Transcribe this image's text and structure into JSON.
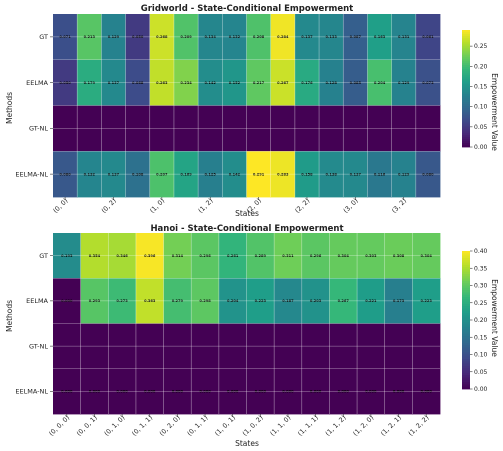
{
  "colors": {
    "viridis": [
      "#440154",
      "#482878",
      "#3e4989",
      "#31688e",
      "#26828e",
      "#1f9e89",
      "#35b779",
      "#6ece58",
      "#b5de2b",
      "#fde725"
    ],
    "grid_line": "#ffffff"
  },
  "chart_data": [
    {
      "type": "heatmap",
      "title": "Gridworld - State-Conditional Empowerment",
      "xlabel": "States",
      "ylabel": "Methods",
      "rows": [
        "GT",
        "EELMA",
        "GT-NL",
        "EELMA-NL"
      ],
      "x_tick_labels": [
        "(0, 0)",
        "(0, 2)",
        "(1, 0)",
        "(1, 2)",
        "(2, 0)",
        "(2, 2)",
        "(3, 0)",
        "(3, 2)"
      ],
      "x_tick_positions": [
        0,
        2,
        4,
        6,
        8,
        10,
        12,
        14
      ],
      "n_columns": 16,
      "values": [
        [
          0.071,
          0.213,
          0.129,
          0.05,
          0.268,
          0.209,
          0.134,
          0.132,
          0.208,
          0.284,
          0.137,
          0.133,
          0.087,
          0.163,
          0.131,
          0.061
        ],
        [
          0.05,
          0.179,
          0.137,
          0.068,
          0.263,
          0.234,
          0.142,
          0.152,
          0.217,
          0.267,
          0.176,
          0.128,
          0.085,
          0.204,
          0.129,
          0.073
        ],
        [
          0,
          0,
          0,
          0,
          0,
          0,
          0,
          0,
          0,
          0,
          0,
          0,
          0,
          0,
          0,
          0
        ],
        [
          0.08,
          0.132,
          0.137,
          0.108,
          0.207,
          0.169,
          0.125,
          0.142,
          0.291,
          0.283,
          0.158,
          0.138,
          0.137,
          0.116,
          0.129,
          0.08
        ]
      ],
      "cell_labels": [
        [
          "0.071",
          "0.213",
          "0.129",
          "0.050",
          "0.268",
          "0.209",
          "0.134",
          "0.132",
          "0.208",
          "0.284",
          "0.137",
          "0.133",
          "0.087",
          "0.163",
          "0.131",
          "0.061"
        ],
        [
          "0.050",
          "0.179",
          "0.137",
          "0.068",
          "0.263",
          "0.234",
          "0.142",
          "0.152",
          "0.217",
          "0.267",
          "0.176",
          "0.128",
          "0.085",
          "0.204",
          "0.129",
          "0.073"
        ],
        [
          "",
          "",
          "",
          "",
          "",
          "",
          "",
          "",
          "",
          "",
          "",
          "",
          "",
          "",
          "",
          ""
        ],
        [
          "0.080",
          "0.132",
          "0.137",
          "0.108",
          "0.207",
          "0.169",
          "0.125",
          "0.142",
          "0.291",
          "0.283",
          "0.158",
          "0.138",
          "0.137",
          "0.116",
          "0.129",
          "0.080"
        ]
      ],
      "color_range": [
        0,
        0.29
      ],
      "colorbar": {
        "label": "Empowerment Value",
        "ticks": [
          "0.00",
          "0.05",
          "0.10",
          "0.15",
          "0.20",
          "0.25"
        ],
        "tick_values": [
          0,
          0.05,
          0.1,
          0.15,
          0.2,
          0.25
        ]
      }
    },
    {
      "type": "heatmap",
      "title": "Hanoi - State-Conditional Empowerment",
      "xlabel": "States",
      "ylabel": "Methods",
      "rows": [
        "GT",
        "EELMA",
        "GT-NL",
        "EELMA-NL"
      ],
      "x_tick_labels": [
        "(0, 0, 0)",
        "(0, 0, 1)",
        "(0, 1, 0)",
        "(0, 1, 1)",
        "(0, 2, 0)",
        "(0, 1, 1)",
        "(1, 0, 1)",
        "(1, 0, 2)",
        "(1, 1, 0)",
        "(1, 1, 1)",
        "(1, 1, 2)",
        "(1, 2, 0)",
        "(1, 2, 1)",
        "(1, 2, 2)"
      ],
      "x_tick_positions": [
        0,
        1,
        2,
        3,
        4,
        5,
        6,
        7,
        8,
        9,
        10,
        11,
        12,
        13
      ],
      "n_columns": 14,
      "values": [
        [
          0.193,
          0.354,
          0.346,
          0.396,
          0.314,
          0.296,
          0.261,
          0.289,
          0.311,
          0.296,
          0.304,
          0.303,
          0.308,
          0.304
        ],
        [
          0.0,
          0.293,
          0.273,
          0.363,
          0.279,
          0.298,
          0.204,
          0.223,
          0.187,
          0.203,
          0.267,
          0.221,
          0.173,
          0.223
        ],
        [
          0,
          0,
          0,
          0,
          0,
          0,
          0,
          0,
          0,
          0,
          0,
          0,
          0,
          0
        ],
        [
          0.0,
          0.0,
          0.0,
          0.0,
          0.0,
          0.0,
          0.0,
          0.0,
          0.0,
          0.0,
          0.0,
          0.0,
          0.0,
          0.0
        ]
      ],
      "cell_labels": [
        [
          "0.193",
          "0.354",
          "0.346",
          "0.396",
          "0.314",
          "0.296",
          "0.261",
          "0.289",
          "0.311",
          "0.296",
          "0.304",
          "0.303",
          "0.308",
          "0.304"
        ],
        [
          "0.000",
          "0.293",
          "0.273",
          "0.363",
          "0.279",
          "0.298",
          "0.204",
          "0.223",
          "0.187",
          "0.203",
          "0.267",
          "0.221",
          "0.173",
          "0.223"
        ],
        [
          "",
          "",
          "",
          "",
          "",
          "",
          "",
          "",
          "",
          "",
          "",
          "",
          "",
          ""
        ],
        [
          "0.000",
          "0.000",
          "0.000",
          "0.000",
          "0.000",
          "0.000",
          "0.000",
          "0.000",
          "0.000",
          "0.000",
          "0.000",
          "0.000",
          "0.000",
          "0.000"
        ]
      ],
      "color_range": [
        0,
        0.4
      ],
      "colorbar": {
        "label": "Empowerment Value",
        "ticks": [
          "0.00",
          "0.05",
          "0.10",
          "0.15",
          "0.20",
          "0.25",
          "0.30",
          "0.35",
          "0.40"
        ],
        "tick_values": [
          0,
          0.05,
          0.1,
          0.15,
          0.2,
          0.25,
          0.3,
          0.35,
          0.4
        ]
      }
    }
  ]
}
